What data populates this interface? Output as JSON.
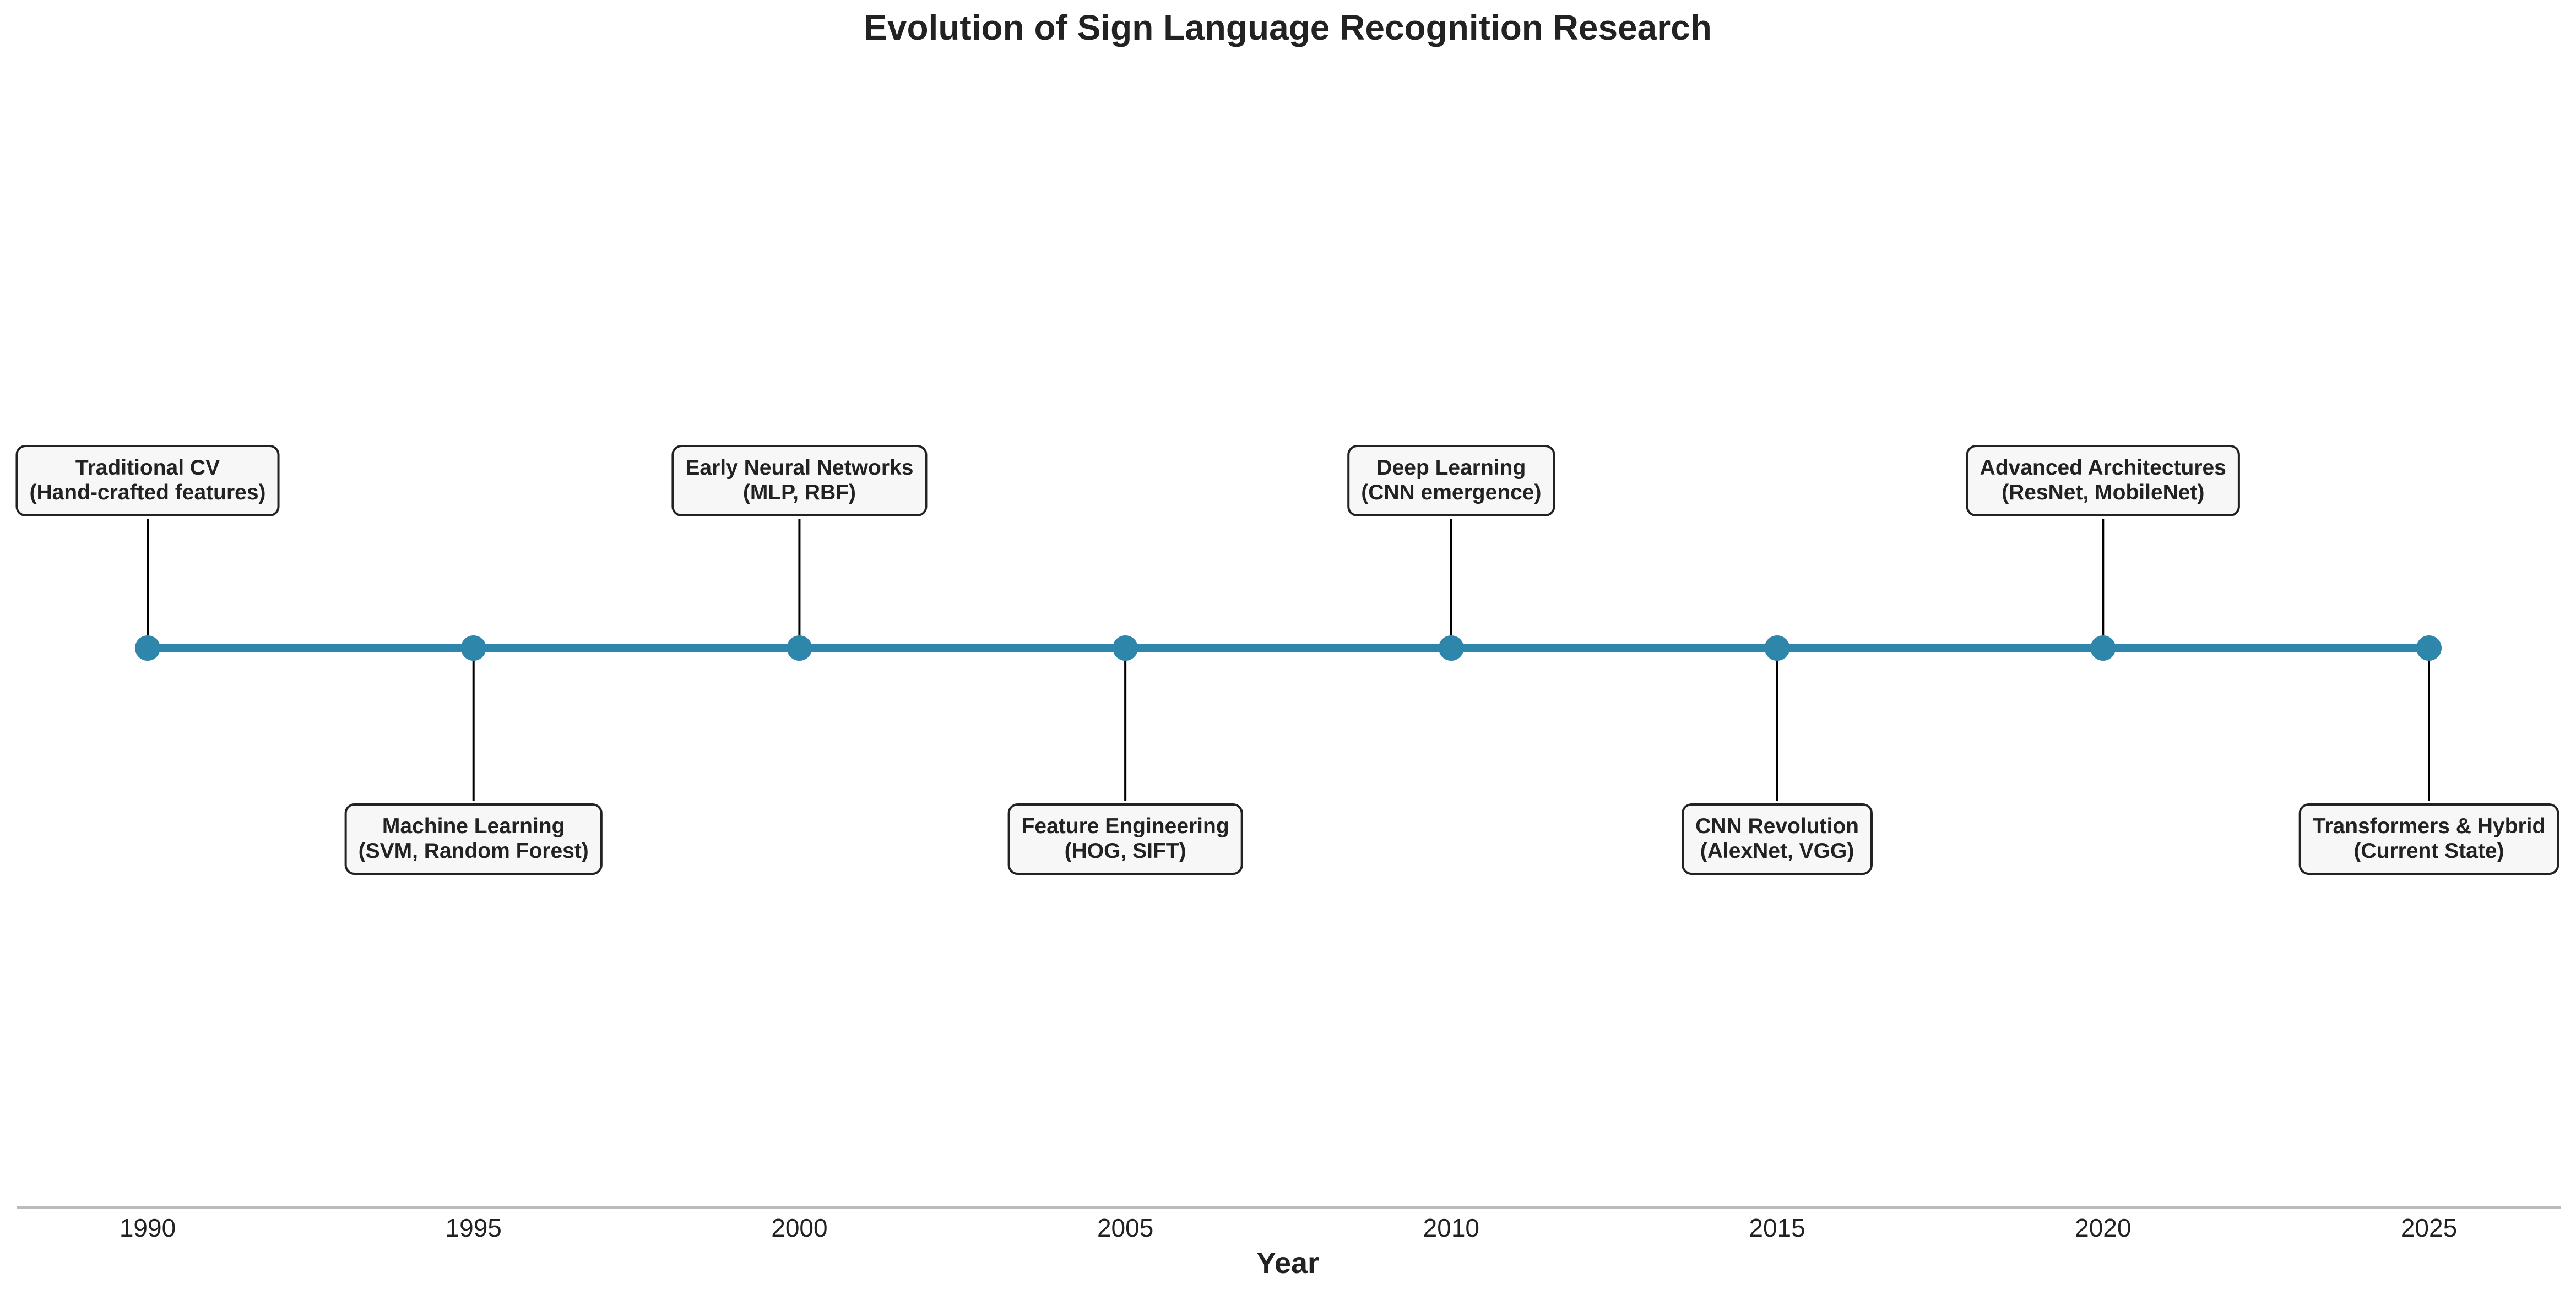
{
  "chart_data": {
    "type": "timeline",
    "title": "Evolution of Sign Language Recognition Research",
    "xlabel": "Year",
    "xlim": [
      1990,
      2025
    ],
    "xticks": [
      1990,
      1995,
      2000,
      2005,
      2010,
      2015,
      2020,
      2025
    ],
    "line_color": "#2e86ab",
    "events": [
      {
        "year": 1990,
        "line1": "Traditional CV",
        "line2": "(Hand-crafted features)",
        "position": "above"
      },
      {
        "year": 1995,
        "line1": "Machine Learning",
        "line2": "(SVM, Random Forest)",
        "position": "below"
      },
      {
        "year": 2000,
        "line1": "Early Neural Networks",
        "line2": "(MLP, RBF)",
        "position": "above"
      },
      {
        "year": 2005,
        "line1": "Feature Engineering",
        "line2": "(HOG, SIFT)",
        "position": "below"
      },
      {
        "year": 2010,
        "line1": "Deep Learning",
        "line2": "(CNN emergence)",
        "position": "above"
      },
      {
        "year": 2015,
        "line1": "CNN Revolution",
        "line2": "(AlexNet, VGG)",
        "position": "below"
      },
      {
        "year": 2020,
        "line1": "Advanced Architectures",
        "line2": "(ResNet, MobileNet)",
        "position": "above"
      },
      {
        "year": 2025,
        "line1": "Transformers & Hybrid",
        "line2": "(Current State)",
        "position": "below"
      }
    ]
  }
}
